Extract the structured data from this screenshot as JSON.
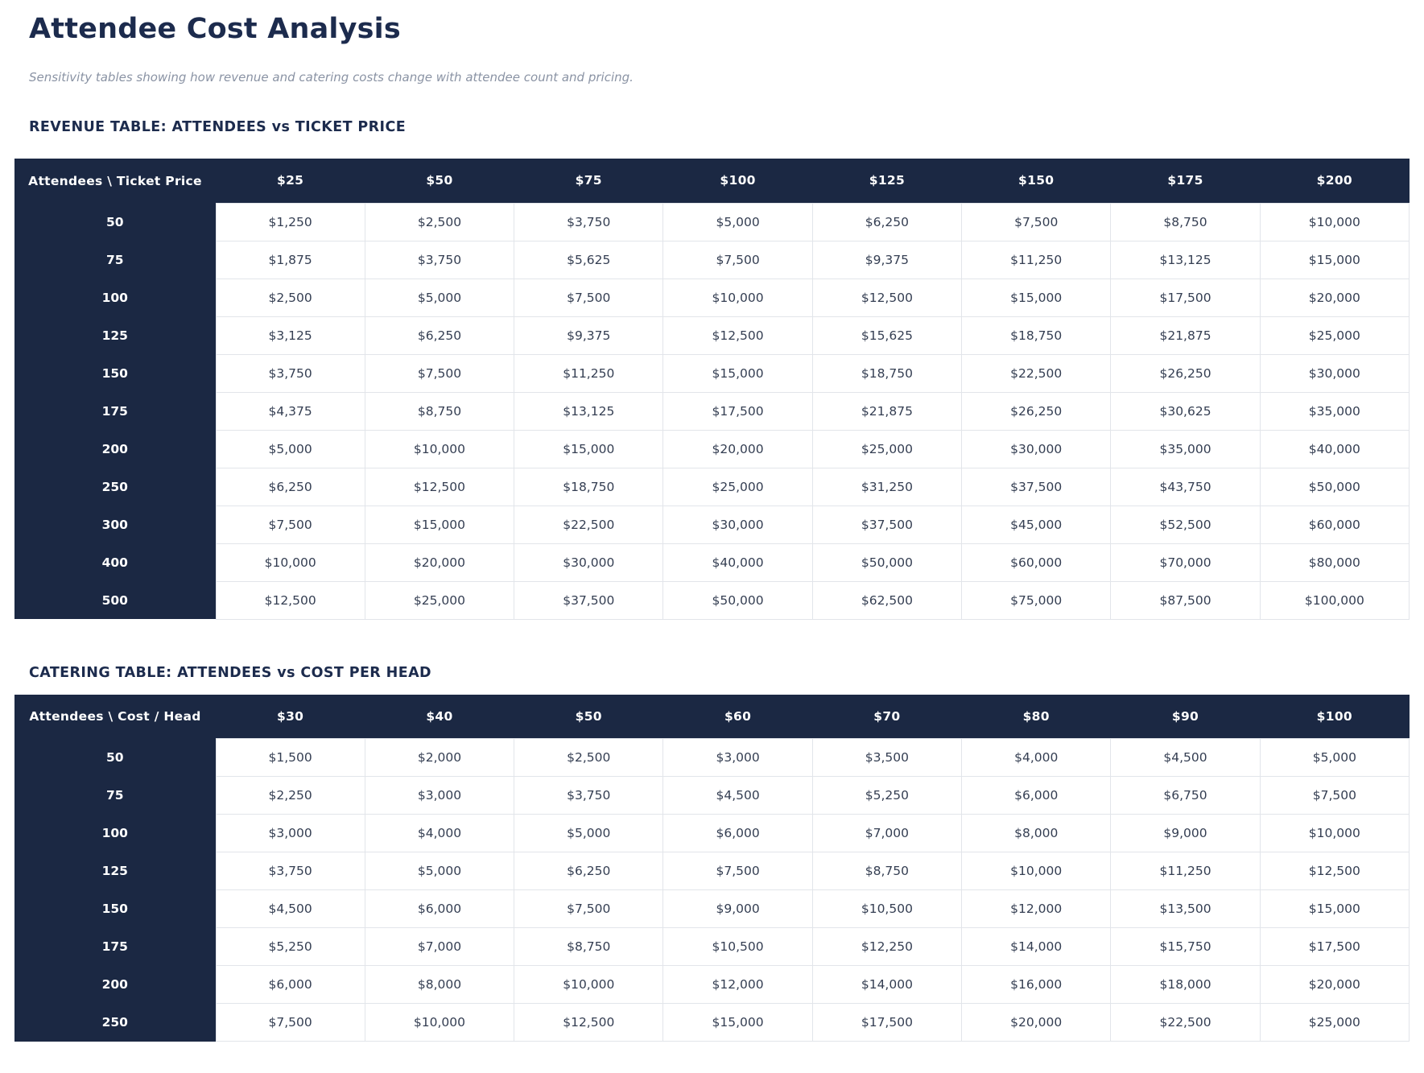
{
  "header": {
    "title": "Attendee Cost Analysis",
    "subtitle": "Sensitivity tables showing how revenue and catering costs change with attendee count and pricing."
  },
  "colors": {
    "navy": "#1b2843",
    "heading_text": "#1c2b4d",
    "subtitle_text": "#8a93a4",
    "cell_text": "#343e52",
    "cell_border": "#e2e5ea",
    "page_background": "#ffffff"
  },
  "tables": {
    "revenue": {
      "heading": "REVENUE TABLE: ATTENDEES vs TICKET PRICE",
      "corner_label": "Attendees \\ Ticket Price",
      "column_headers": [
        "$25",
        "$50",
        "$75",
        "$100",
        "$125",
        "$150",
        "$175",
        "$200"
      ],
      "rows": [
        {
          "label": "50",
          "values": [
            "$1,250",
            "$2,500",
            "$3,750",
            "$5,000",
            "$6,250",
            "$7,500",
            "$8,750",
            "$10,000"
          ]
        },
        {
          "label": "75",
          "values": [
            "$1,875",
            "$3,750",
            "$5,625",
            "$7,500",
            "$9,375",
            "$11,250",
            "$13,125",
            "$15,000"
          ]
        },
        {
          "label": "100",
          "values": [
            "$2,500",
            "$5,000",
            "$7,500",
            "$10,000",
            "$12,500",
            "$15,000",
            "$17,500",
            "$20,000"
          ]
        },
        {
          "label": "125",
          "values": [
            "$3,125",
            "$6,250",
            "$9,375",
            "$12,500",
            "$15,625",
            "$18,750",
            "$21,875",
            "$25,000"
          ]
        },
        {
          "label": "150",
          "values": [
            "$3,750",
            "$7,500",
            "$11,250",
            "$15,000",
            "$18,750",
            "$22,500",
            "$26,250",
            "$30,000"
          ]
        },
        {
          "label": "175",
          "values": [
            "$4,375",
            "$8,750",
            "$13,125",
            "$17,500",
            "$21,875",
            "$26,250",
            "$30,625",
            "$35,000"
          ]
        },
        {
          "label": "200",
          "values": [
            "$5,000",
            "$10,000",
            "$15,000",
            "$20,000",
            "$25,000",
            "$30,000",
            "$35,000",
            "$40,000"
          ]
        },
        {
          "label": "250",
          "values": [
            "$6,250",
            "$12,500",
            "$18,750",
            "$25,000",
            "$31,250",
            "$37,500",
            "$43,750",
            "$50,000"
          ]
        },
        {
          "label": "300",
          "values": [
            "$7,500",
            "$15,000",
            "$22,500",
            "$30,000",
            "$37,500",
            "$45,000",
            "$52,500",
            "$60,000"
          ]
        },
        {
          "label": "400",
          "values": [
            "$10,000",
            "$20,000",
            "$30,000",
            "$40,000",
            "$50,000",
            "$60,000",
            "$70,000",
            "$80,000"
          ]
        },
        {
          "label": "500",
          "values": [
            "$12,500",
            "$25,000",
            "$37,500",
            "$50,000",
            "$62,500",
            "$75,000",
            "$87,500",
            "$100,000"
          ]
        }
      ]
    },
    "catering": {
      "heading": "CATERING TABLE: ATTENDEES vs COST PER HEAD",
      "corner_label": "Attendees \\ Cost / Head",
      "column_headers": [
        "$30",
        "$40",
        "$50",
        "$60",
        "$70",
        "$80",
        "$90",
        "$100"
      ],
      "rows": [
        {
          "label": "50",
          "values": [
            "$1,500",
            "$2,000",
            "$2,500",
            "$3,000",
            "$3,500",
            "$4,000",
            "$4,500",
            "$5,000"
          ]
        },
        {
          "label": "75",
          "values": [
            "$2,250",
            "$3,000",
            "$3,750",
            "$4,500",
            "$5,250",
            "$6,000",
            "$6,750",
            "$7,500"
          ]
        },
        {
          "label": "100",
          "values": [
            "$3,000",
            "$4,000",
            "$5,000",
            "$6,000",
            "$7,000",
            "$8,000",
            "$9,000",
            "$10,000"
          ]
        },
        {
          "label": "125",
          "values": [
            "$3,750",
            "$5,000",
            "$6,250",
            "$7,500",
            "$8,750",
            "$10,000",
            "$11,250",
            "$12,500"
          ]
        },
        {
          "label": "150",
          "values": [
            "$4,500",
            "$6,000",
            "$7,500",
            "$9,000",
            "$10,500",
            "$12,000",
            "$13,500",
            "$15,000"
          ]
        },
        {
          "label": "175",
          "values": [
            "$5,250",
            "$7,000",
            "$8,750",
            "$10,500",
            "$12,250",
            "$14,000",
            "$15,750",
            "$17,500"
          ]
        },
        {
          "label": "200",
          "values": [
            "$6,000",
            "$8,000",
            "$10,000",
            "$12,000",
            "$14,000",
            "$16,000",
            "$18,000",
            "$20,000"
          ]
        },
        {
          "label": "250",
          "values": [
            "$7,500",
            "$10,000",
            "$12,500",
            "$15,000",
            "$17,500",
            "$20,000",
            "$22,500",
            "$25,000"
          ]
        }
      ]
    }
  }
}
